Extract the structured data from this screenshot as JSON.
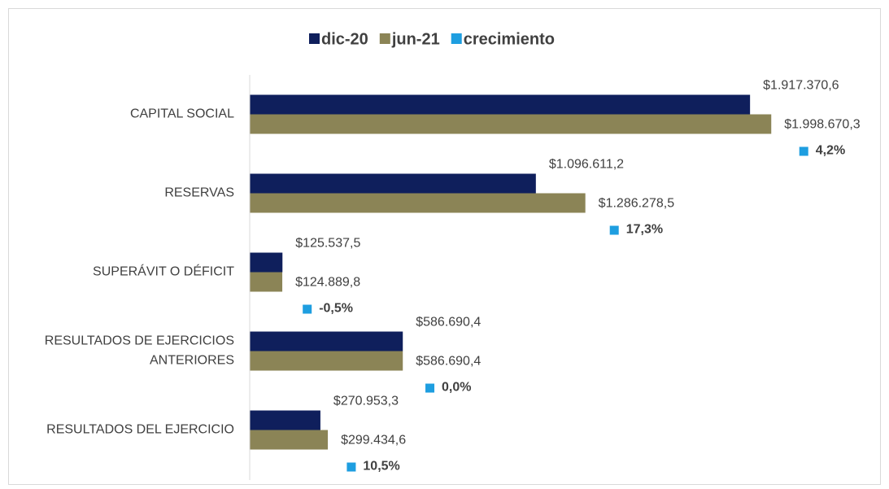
{
  "chart_data": {
    "type": "bar",
    "orientation": "horizontal",
    "categories": [
      "CAPITAL SOCIAL",
      "RESERVAS",
      "SUPERÁVIT O DÉFICIT",
      "RESULTADOS DE EJERCICIOS ANTERIORES",
      "RESULTADOS DEL EJERCICIO"
    ],
    "series": [
      {
        "name": "dic-20",
        "color": "#0f1f5c",
        "values": [
          1917370.6,
          1096611.2,
          125537.5,
          586690.4,
          270953.3
        ],
        "value_labels": [
          "$1.917.370,6",
          "$1.096.611,2",
          "$125.537,5",
          "$586.690,4",
          "$270.953,3"
        ]
      },
      {
        "name": "jun-21",
        "color": "#8b8456",
        "values": [
          1998670.3,
          1286278.5,
          124889.8,
          586690.4,
          299434.6
        ],
        "value_labels": [
          "$1.998.670,3",
          "$1.286.278,5",
          "$124.889,8",
          "$586.690,4",
          "$299.434,6"
        ]
      },
      {
        "name": "crecimiento",
        "color": "#1e9ee0",
        "values": [
          4.2,
          17.3,
          -0.5,
          0.0,
          10.5
        ],
        "value_labels": [
          "4,2%",
          "17,3%",
          "-0,5%",
          "0,0%",
          "10,5%"
        ]
      }
    ],
    "xlim": [
      0,
      2400000
    ],
    "legend": "top"
  }
}
